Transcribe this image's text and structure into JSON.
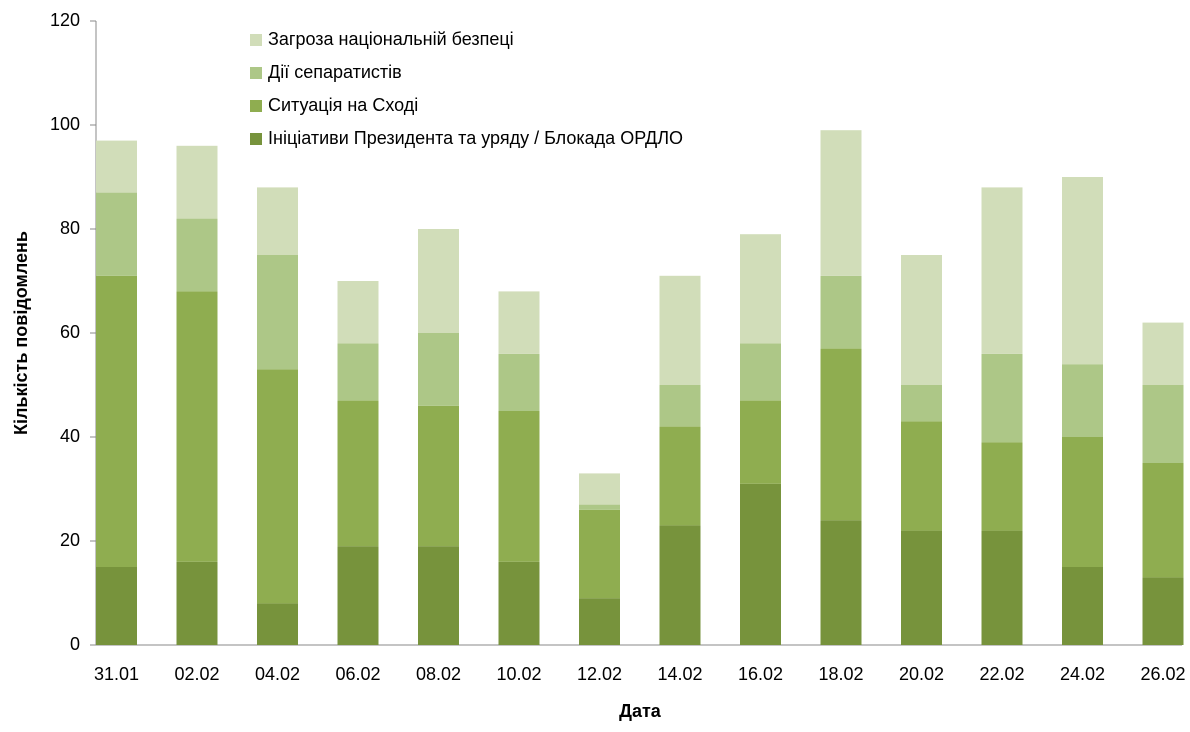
{
  "chart_data": {
    "type": "stacked_bar",
    "categories": [
      "31.01",
      "02.02",
      "04.02",
      "06.02",
      "08.02",
      "10.02",
      "12.02",
      "14.02",
      "16.02",
      "18.02",
      "20.02",
      "22.02",
      "24.02",
      "26.02"
    ],
    "series": [
      {
        "name": "Ініціативи Президента та уряду / Блокада ОРДЛО",
        "color": "#77933c",
        "values": [
          15,
          16,
          8,
          19,
          19,
          16,
          9,
          23,
          31,
          24,
          22,
          22,
          15,
          13
        ]
      },
      {
        "name": "Ситуація на Сході",
        "color": "#8fad50",
        "values": [
          56,
          52,
          45,
          28,
          27,
          29,
          17,
          19,
          16,
          33,
          21,
          17,
          25,
          22
        ]
      },
      {
        "name": "Дії сепаратистів",
        "color": "#adc787",
        "values": [
          16,
          14,
          22,
          11,
          14,
          11,
          1,
          8,
          11,
          14,
          7,
          17,
          14,
          15
        ]
      },
      {
        "name": "Загроза національній безпеці",
        "color": "#d1ddb9",
        "values": [
          10,
          14,
          13,
          12,
          20,
          12,
          6,
          21,
          21,
          28,
          25,
          32,
          36,
          12
        ]
      }
    ],
    "x_label": "Дата",
    "y_label": "Кількість повідомлень",
    "ylim": [
      0,
      120
    ],
    "yticks": [
      0,
      20,
      40,
      60,
      80,
      100,
      120
    ],
    "grid": false
  }
}
